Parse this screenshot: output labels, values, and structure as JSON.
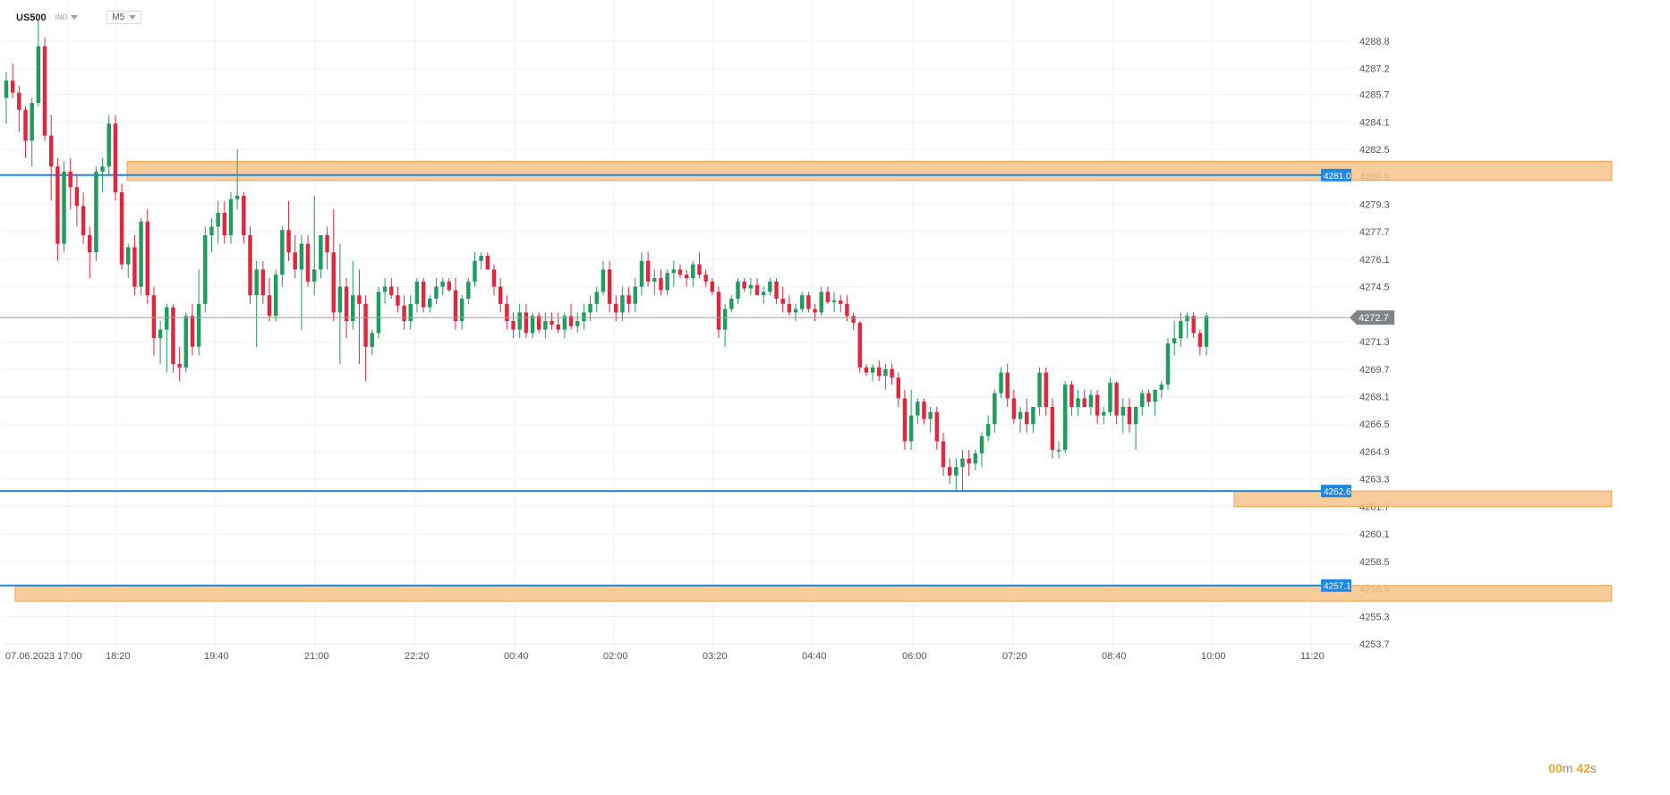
{
  "header": {
    "symbol": "US500",
    "instrument_type": "IND",
    "timeframe": "M5"
  },
  "timer": {
    "minutes": "00",
    "min_unit": "m",
    "seconds": "42",
    "sec_unit": "s"
  },
  "colors": {
    "bull": "#1f9c5e",
    "bear": "#e0273f",
    "level_line": "#1e88e5",
    "zone_fill": "#f8c38a",
    "zone_stroke": "#f0a24e",
    "grid": "#eef0f3",
    "price_line": "#9e9e9e"
  },
  "chart_data": {
    "type": "candlestick",
    "y_axis": {
      "min": 4253.0,
      "max": 4290.0,
      "ticks": [
        "4288.8",
        "4287.2",
        "4285.7",
        "4284.1",
        "4282.5",
        "4280.9",
        "4279.3",
        "4277.7",
        "4276.1",
        "4274.5",
        "4272.9",
        "4271.3",
        "4269.7",
        "4268.1",
        "4266.5",
        "4264.9",
        "4263.3",
        "4261.7",
        "4260.1",
        "4258.5",
        "4256.9",
        "4255.3",
        "4253.7"
      ]
    },
    "x_axis": {
      "labels": [
        "07.06.2023",
        "17:00",
        "18:20",
        "19:40",
        "21:00",
        "22:20",
        "00:40",
        "02:00",
        "03:20",
        "04:40",
        "06:00",
        "07:20",
        "08:40",
        "10:00",
        "11:20"
      ]
    },
    "current_price": {
      "value": 4272.7,
      "label": "4272.7"
    },
    "levels": [
      {
        "value": 4281.0,
        "label": "4281.0"
      },
      {
        "value": 4262.6,
        "label": "4262.6"
      },
      {
        "value": 4257.1,
        "label": "4257.1"
      }
    ],
    "zones": [
      {
        "from_x": 0.075,
        "to_x": 0.964,
        "top": 4281.8,
        "bottom": 4281.0
      },
      {
        "from_x": 0.738,
        "to_x": 0.964,
        "top": 4262.6,
        "bottom": 4262.0
      },
      {
        "from_x": 0.008,
        "to_x": 0.964,
        "top": 4257.1,
        "bottom": 4256.5
      }
    ],
    "candles": [
      [
        4285.5,
        4287.0,
        4284.0,
        4286.5
      ],
      [
        4286.5,
        4287.5,
        4285.5,
        4285.8
      ],
      [
        4285.8,
        4286.2,
        4283.5,
        4284.8
      ],
      [
        4284.8,
        4285.0,
        4282.0,
        4283.0
      ],
      [
        4283.0,
        4285.5,
        4281.5,
        4285.2
      ],
      [
        4285.2,
        4290.0,
        4285.0,
        4288.5
      ],
      [
        4288.5,
        4289.0,
        4283.0,
        4283.3
      ],
      [
        4283.3,
        4284.5,
        4279.5,
        4281.5
      ],
      [
        4281.5,
        4282.0,
        4276.0,
        4277.0
      ],
      [
        4277.0,
        4281.8,
        4276.5,
        4281.2
      ],
      [
        4281.2,
        4282.0,
        4279.0,
        4280.3
      ],
      [
        4280.3,
        4281.0,
        4278.0,
        4279.2
      ],
      [
        4279.2,
        4280.0,
        4277.0,
        4277.5
      ],
      [
        4277.5,
        4278.0,
        4275.0,
        4276.5
      ],
      [
        4276.5,
        4281.5,
        4276.0,
        4281.2
      ],
      [
        4281.2,
        4282.0,
        4280.0,
        4281.5
      ],
      [
        4281.5,
        4284.5,
        4281.0,
        4284.0
      ],
      [
        4284.0,
        4284.5,
        4279.5,
        4280.0
      ],
      [
        4280.0,
        4280.5,
        4275.5,
        4275.8
      ],
      [
        4275.8,
        4277.0,
        4275.0,
        4276.8
      ],
      [
        4276.8,
        4277.5,
        4274.0,
        4274.5
      ],
      [
        4274.5,
        4278.5,
        4274.0,
        4278.3
      ],
      [
        4278.3,
        4279.0,
        4273.5,
        4274.0
      ],
      [
        4274.0,
        4274.5,
        4270.5,
        4271.5
      ],
      [
        4271.5,
        4272.5,
        4270.0,
        4272.0
      ],
      [
        4272.0,
        4273.5,
        4269.5,
        4273.3
      ],
      [
        4273.3,
        4273.5,
        4269.5,
        4270.0
      ],
      [
        4270.0,
        4271.0,
        4269.0,
        4269.8
      ],
      [
        4269.8,
        4273.0,
        4269.5,
        4272.8
      ],
      [
        4272.8,
        4273.5,
        4270.5,
        4271.0
      ],
      [
        4271.0,
        4275.5,
        4270.5,
        4273.5
      ],
      [
        4273.5,
        4278.0,
        4273.0,
        4277.5
      ],
      [
        4277.5,
        4278.5,
        4276.5,
        4278.0
      ],
      [
        4278.0,
        4279.5,
        4277.0,
        4278.8
      ],
      [
        4278.8,
        4279.5,
        4277.0,
        4277.5
      ],
      [
        4277.5,
        4280.0,
        4277.0,
        4279.6
      ],
      [
        4279.6,
        4282.5,
        4279.0,
        4279.8
      ],
      [
        4279.8,
        4280.0,
        4277.0,
        4277.5
      ],
      [
        4277.5,
        4278.0,
        4273.5,
        4274.0
      ],
      [
        4274.0,
        4276.0,
        4271.0,
        4275.5
      ],
      [
        4275.5,
        4276.0,
        4273.5,
        4274.0
      ],
      [
        4274.0,
        4275.0,
        4272.5,
        4272.8
      ],
      [
        4272.8,
        4275.5,
        4272.5,
        4275.2
      ],
      [
        4275.2,
        4278.0,
        4274.5,
        4277.8
      ],
      [
        4277.8,
        4279.5,
        4276.0,
        4276.5
      ],
      [
        4276.5,
        4277.5,
        4275.0,
        4275.5
      ],
      [
        4275.5,
        4277.5,
        4272.0,
        4277.0
      ],
      [
        4277.0,
        4277.5,
        4274.5,
        4274.8
      ],
      [
        4274.8,
        4279.8,
        4274.0,
        4275.5
      ],
      [
        4275.5,
        4277.5,
        4275.0,
        4277.5
      ],
      [
        4277.5,
        4278.0,
        4275.5,
        4276.5
      ],
      [
        4276.5,
        4279.0,
        4272.5,
        4273.0
      ],
      [
        4273.0,
        4277.0,
        4270.0,
        4274.5
      ],
      [
        4274.5,
        4275.0,
        4271.5,
        4272.5
      ],
      [
        4272.5,
        4276.0,
        4272.0,
        4274.0
      ],
      [
        4274.0,
        4275.5,
        4270.0,
        4273.5
      ],
      [
        4273.5,
        4274.0,
        4269.0,
        4271.0
      ],
      [
        4271.0,
        4272.0,
        4270.5,
        4271.8
      ],
      [
        4271.8,
        4274.5,
        4271.5,
        4274.2
      ],
      [
        4274.2,
        4275.0,
        4273.5,
        4274.5
      ],
      [
        4274.5,
        4275.0,
        4273.8,
        4274.0
      ],
      [
        4274.0,
        4274.5,
        4273.0,
        4273.4
      ],
      [
        4273.4,
        4274.0,
        4272.0,
        4272.5
      ],
      [
        4272.5,
        4274.0,
        4272.0,
        4273.5
      ],
      [
        4273.5,
        4275.0,
        4273.0,
        4274.8
      ],
      [
        4274.8,
        4275.0,
        4273.0,
        4273.3
      ],
      [
        4273.3,
        4274.0,
        4273.0,
        4273.8
      ],
      [
        4273.8,
        4275.0,
        4273.5,
        4274.5
      ],
      [
        4274.5,
        4275.0,
        4274.0,
        4274.8
      ],
      [
        4274.8,
        4275.0,
        4274.2,
        4274.3
      ],
      [
        4274.3,
        4275.0,
        4272.0,
        4272.5
      ],
      [
        4272.5,
        4274.0,
        4272.0,
        4273.8
      ],
      [
        4273.8,
        4275.0,
        4273.5,
        4274.8
      ],
      [
        4274.8,
        4276.5,
        4274.5,
        4276.0
      ],
      [
        4276.0,
        4276.5,
        4275.5,
        4276.3
      ],
      [
        4276.3,
        4276.5,
        4275.5,
        4275.5
      ],
      [
        4275.5,
        4275.8,
        4274.0,
        4274.5
      ],
      [
        4274.5,
        4275.0,
        4273.0,
        4273.5
      ],
      [
        4273.5,
        4274.0,
        4272.0,
        4272.5
      ],
      [
        4272.5,
        4273.0,
        4271.5,
        4272.0
      ],
      [
        4272.0,
        4273.5,
        4271.5,
        4273.0
      ],
      [
        4273.0,
        4273.5,
        4271.5,
        4271.8
      ],
      [
        4271.8,
        4273.0,
        4271.5,
        4272.8
      ],
      [
        4272.8,
        4273.0,
        4271.8,
        4272.0
      ],
      [
        4272.0,
        4273.0,
        4271.5,
        4272.5
      ],
      [
        4272.5,
        4273.0,
        4272.0,
        4272.3
      ],
      [
        4272.3,
        4273.0,
        4271.8,
        4272.0
      ],
      [
        4272.0,
        4273.0,
        4271.5,
        4272.8
      ],
      [
        4272.8,
        4273.5,
        4272.0,
        4272.2
      ],
      [
        4272.2,
        4273.0,
        4271.8,
        4272.5
      ],
      [
        4272.5,
        4273.5,
        4272.0,
        4273.0
      ],
      [
        4273.0,
        4274.0,
        4272.5,
        4273.5
      ],
      [
        4273.5,
        4274.5,
        4273.0,
        4274.2
      ],
      [
        4274.2,
        4276.0,
        4274.0,
        4275.5
      ],
      [
        4275.5,
        4276.0,
        4273.0,
        4273.5
      ],
      [
        4273.5,
        4274.0,
        4272.5,
        4273.0
      ],
      [
        4273.0,
        4274.5,
        4272.5,
        4274.0
      ],
      [
        4274.0,
        4274.5,
        4273.0,
        4273.5
      ],
      [
        4273.5,
        4275.0,
        4273.0,
        4274.5
      ],
      [
        4274.5,
        4276.5,
        4274.0,
        4276.0
      ],
      [
        4276.0,
        4276.5,
        4274.5,
        4274.8
      ],
      [
        4274.8,
        4275.5,
        4274.0,
        4275.0
      ],
      [
        4275.0,
        4275.5,
        4274.0,
        4274.3
      ],
      [
        4274.3,
        4275.5,
        4274.0,
        4275.3
      ],
      [
        4275.3,
        4276.0,
        4274.5,
        4275.5
      ],
      [
        4275.5,
        4275.8,
        4275.0,
        4275.2
      ],
      [
        4275.2,
        4275.5,
        4274.5,
        4275.0
      ],
      [
        4275.0,
        4276.0,
        4274.5,
        4275.8
      ],
      [
        4275.8,
        4276.5,
        4275.0,
        4275.2
      ],
      [
        4275.2,
        4275.5,
        4274.5,
        4274.8
      ],
      [
        4274.8,
        4275.0,
        4274.0,
        4274.2
      ],
      [
        4274.2,
        4274.5,
        4271.5,
        4272.0
      ],
      [
        4272.0,
        4273.5,
        4271.0,
        4273.2
      ],
      [
        4273.2,
        4274.0,
        4273.0,
        4273.8
      ],
      [
        4273.8,
        4275.0,
        4273.5,
        4274.8
      ],
      [
        4274.8,
        4275.0,
        4274.2,
        4274.4
      ],
      [
        4274.4,
        4275.0,
        4274.0,
        4274.6
      ],
      [
        4274.6,
        4275.0,
        4274.0,
        4274.0
      ],
      [
        4274.0,
        4274.5,
        4273.5,
        4274.2
      ],
      [
        4274.2,
        4275.0,
        4274.0,
        4274.8
      ],
      [
        4274.8,
        4275.0,
        4273.5,
        4273.8
      ],
      [
        4273.8,
        4274.5,
        4273.0,
        4273.5
      ],
      [
        4273.5,
        4274.0,
        4272.8,
        4273.0
      ],
      [
        4273.0,
        4273.5,
        4272.5,
        4273.2
      ],
      [
        4273.2,
        4274.2,
        4273.0,
        4274.0
      ],
      [
        4274.0,
        4274.2,
        4273.0,
        4273.2
      ],
      [
        4273.2,
        4273.5,
        4272.5,
        4273.0
      ],
      [
        4273.0,
        4274.5,
        4272.8,
        4274.2
      ],
      [
        4274.2,
        4274.5,
        4273.5,
        4273.6
      ],
      [
        4273.6,
        4274.2,
        4273.0,
        4273.7
      ],
      [
        4273.7,
        4274.0,
        4273.0,
        4273.5
      ],
      [
        4273.5,
        4274.0,
        4272.5,
        4272.8
      ],
      [
        4272.8,
        4273.0,
        4272.0,
        4272.4
      ],
      [
        4272.4,
        4272.5,
        4269.5,
        4269.8
      ],
      [
        4269.8,
        4270.0,
        4269.3,
        4269.5
      ],
      [
        4269.5,
        4270.0,
        4269.0,
        4269.8
      ],
      [
        4269.8,
        4270.2,
        4269.0,
        4269.3
      ],
      [
        4269.3,
        4270.0,
        4268.5,
        4269.7
      ],
      [
        4269.7,
        4270.0,
        4268.8,
        4269.2
      ],
      [
        4269.2,
        4269.5,
        4267.5,
        4268.0
      ],
      [
        4268.0,
        4268.5,
        4265.0,
        4265.5
      ],
      [
        4265.5,
        4268.5,
        4265.0,
        4267.0
      ],
      [
        4267.0,
        4268.0,
        4266.5,
        4267.8
      ],
      [
        4267.8,
        4268.0,
        4266.5,
        4266.8
      ],
      [
        4266.8,
        4267.5,
        4266.0,
        4267.2
      ],
      [
        4267.2,
        4267.5,
        4265.0,
        4265.5
      ],
      [
        4265.5,
        4266.0,
        4263.5,
        4264.0
      ],
      [
        4264.0,
        4264.5,
        4263.0,
        4263.5
      ],
      [
        4263.5,
        4264.5,
        4262.6,
        4264.0
      ],
      [
        4264.0,
        4265.0,
        4262.6,
        4264.5
      ],
      [
        4264.5,
        4265.0,
        4263.5,
        4264.2
      ],
      [
        4264.2,
        4265.0,
        4263.8,
        4264.8
      ],
      [
        4264.8,
        4266.0,
        4264.0,
        4265.8
      ],
      [
        4265.8,
        4267.0,
        4265.5,
        4266.5
      ],
      [
        4266.5,
        4268.5,
        4266.0,
        4268.3
      ],
      [
        4268.3,
        4269.8,
        4268.0,
        4269.5
      ],
      [
        4269.5,
        4270.0,
        4267.5,
        4268.0
      ],
      [
        4268.0,
        4268.5,
        4266.5,
        4266.8
      ],
      [
        4266.8,
        4267.5,
        4266.0,
        4267.2
      ],
      [
        4267.2,
        4268.0,
        4266.0,
        4266.5
      ],
      [
        4266.5,
        4267.5,
        4266.0,
        4267.5
      ],
      [
        4267.5,
        4269.8,
        4267.0,
        4269.5
      ],
      [
        4269.5,
        4269.8,
        4267.0,
        4267.5
      ],
      [
        4267.5,
        4268.0,
        4264.5,
        4265.0
      ],
      [
        4265.0,
        4265.5,
        4264.5,
        4265.0
      ],
      [
        4265.0,
        4269.0,
        4264.8,
        4268.8
      ],
      [
        4268.8,
        4269.0,
        4267.0,
        4267.5
      ],
      [
        4267.5,
        4268.5,
        4267.0,
        4268.0
      ],
      [
        4268.0,
        4268.5,
        4267.5,
        4267.5
      ],
      [
        4267.5,
        4268.5,
        4267.0,
        4268.2
      ],
      [
        4268.2,
        4268.5,
        4266.5,
        4267.0
      ],
      [
        4267.0,
        4267.5,
        4266.5,
        4267.2
      ],
      [
        4267.2,
        4269.2,
        4267.0,
        4268.9
      ],
      [
        4268.9,
        4269.0,
        4266.5,
        4267.0
      ],
      [
        4267.0,
        4268.0,
        4266.0,
        4267.5
      ],
      [
        4267.5,
        4268.0,
        4266.0,
        4266.5
      ],
      [
        4266.5,
        4267.5,
        4265.0,
        4267.5
      ],
      [
        4267.5,
        4268.5,
        4267.0,
        4268.3
      ],
      [
        4268.3,
        4268.5,
        4267.5,
        4267.8
      ],
      [
        4267.8,
        4268.5,
        4267.0,
        4268.5
      ],
      [
        4268.5,
        4269.0,
        4268.0,
        4268.8
      ],
      [
        4268.8,
        4271.5,
        4268.5,
        4271.2
      ],
      [
        4271.2,
        4272.5,
        4270.5,
        4271.5
      ],
      [
        4271.5,
        4273.0,
        4271.0,
        4272.5
      ],
      [
        4272.5,
        4273.0,
        4271.5,
        4272.8
      ],
      [
        4272.8,
        4273.0,
        4271.5,
        4271.8
      ],
      [
        4271.8,
        4272.0,
        4270.5,
        4271.0
      ],
      [
        4271.0,
        4273.0,
        4270.5,
        4272.8
      ]
    ]
  }
}
